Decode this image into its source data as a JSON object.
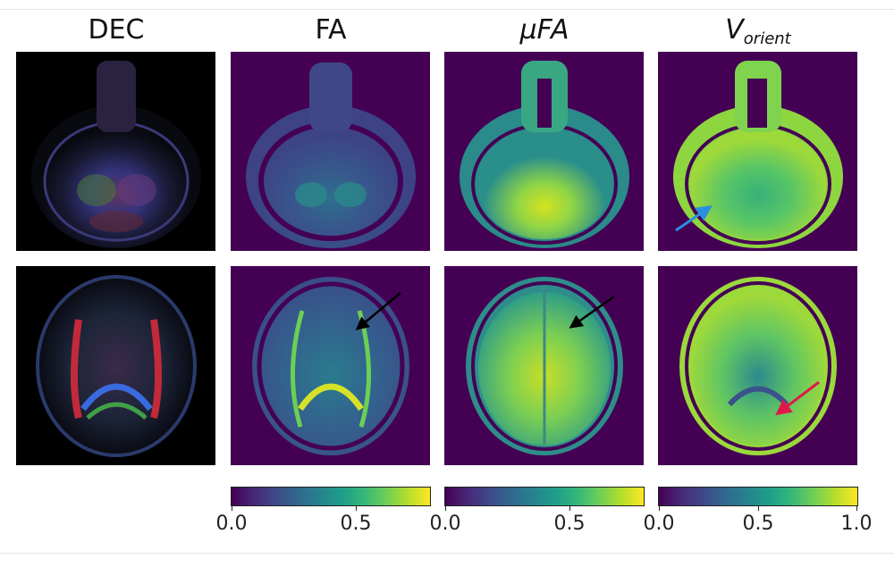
{
  "columns": [
    {
      "id": "dec",
      "title": "DEC"
    },
    {
      "id": "fa",
      "title": "FA"
    },
    {
      "id": "mufa",
      "title_prefix": "μ",
      "title_main": "FA"
    },
    {
      "id": "vorient",
      "title_main": "V",
      "title_sub": "orient"
    }
  ],
  "colorbars": [
    {
      "for": "FA",
      "colormap": "viridis",
      "range": [
        0,
        0.8
      ],
      "ticks": [
        "0.0",
        "0.5"
      ]
    },
    {
      "for": "μFA",
      "colormap": "viridis",
      "range": [
        0,
        0.8
      ],
      "ticks": [
        "0.0",
        "0.5"
      ]
    },
    {
      "for": "V_orient",
      "colormap": "viridis",
      "range": [
        0,
        1.0
      ],
      "ticks": [
        "0.0",
        "0.5",
        "1.0"
      ]
    }
  ],
  "annotations": [
    {
      "panel": "V_orient row 1",
      "arrow": "blue-arrow",
      "color": "#2b8fe0"
    },
    {
      "panel": "FA row 2",
      "arrow": "black-arrow",
      "color": "#000000"
    },
    {
      "panel": "μFA row 2",
      "arrow": "black-arrow",
      "color": "#000000"
    },
    {
      "panel": "V_orient row 2",
      "arrow": "red-arrow",
      "color": "#e0184a"
    }
  ],
  "colors": {
    "viridis_low": "#440154",
    "viridis_mid": "#21918c",
    "viridis_high": "#fde725",
    "background": "#ffffff"
  }
}
